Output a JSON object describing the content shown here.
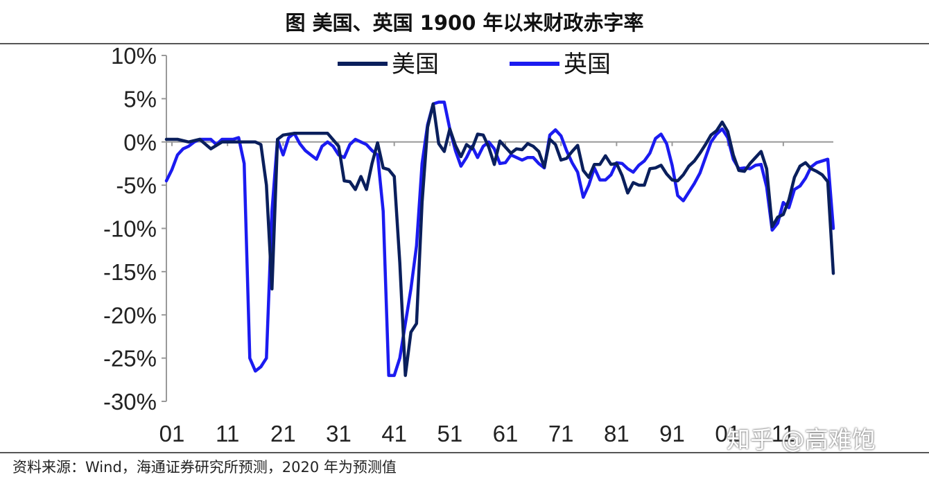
{
  "title": "图 美国、英国 1900 年以来财政赤字率",
  "source": "资料来源：Wind，海通证券研究所预测，2020 年为预测值",
  "watermark": "知乎 @高难饱",
  "chart_data": {
    "type": "line",
    "title": "图 美国、英国 1900 年以来财政赤字率",
    "xlabel": "",
    "ylabel": "",
    "xlim": [
      1900,
      2020
    ],
    "ylim": [
      -30,
      10
    ],
    "yticks": [
      10,
      5,
      0,
      -5,
      -10,
      -15,
      -20,
      -25,
      -30
    ],
    "ytick_labels": [
      "10%",
      "5%",
      "0%",
      "-5%",
      "-10%",
      "-15%",
      "-20%",
      "-25%",
      "-30%"
    ],
    "xticks": [
      1901,
      1911,
      1921,
      1931,
      1941,
      1951,
      1961,
      1971,
      1981,
      1991,
      2001,
      2011
    ],
    "xtick_labels": [
      "01",
      "11",
      "21",
      "31",
      "41",
      "51",
      "61",
      "71",
      "81",
      "91",
      "01",
      "11"
    ],
    "grid": false,
    "legend_position": "top-center",
    "series": [
      {
        "name": "美国",
        "color": "#0a1f5c",
        "points": [
          [
            1900,
            0.3
          ],
          [
            1902,
            0.3
          ],
          [
            1904,
            0
          ],
          [
            1906,
            0.3
          ],
          [
            1908,
            -0.8
          ],
          [
            1910,
            0
          ],
          [
            1912,
            0
          ],
          [
            1914,
            0
          ],
          [
            1916,
            0
          ],
          [
            1917,
            -0.3
          ],
          [
            1918,
            -5
          ],
          [
            1919,
            -17
          ],
          [
            1920,
            0.3
          ],
          [
            1921,
            0.8
          ],
          [
            1923,
            1
          ],
          [
            1925,
            1
          ],
          [
            1927,
            1
          ],
          [
            1929,
            1
          ],
          [
            1931,
            -0.5
          ],
          [
            1932,
            -4.5
          ],
          [
            1933,
            -4.6
          ],
          [
            1934,
            -5.5
          ],
          [
            1935,
            -4
          ],
          [
            1936,
            -5.5
          ],
          [
            1937,
            -2.5
          ],
          [
            1938,
            -0.1
          ],
          [
            1939,
            -3
          ],
          [
            1940,
            -3.2
          ],
          [
            1941,
            -4
          ],
          [
            1942,
            -14
          ],
          [
            1943,
            -27
          ],
          [
            1944,
            -22
          ],
          [
            1945,
            -21
          ],
          [
            1946,
            -7
          ],
          [
            1947,
            1.7
          ],
          [
            1948,
            4.4
          ],
          [
            1949,
            -0.2
          ],
          [
            1950,
            -1.1
          ],
          [
            1951,
            1.5
          ],
          [
            1952,
            -0.4
          ],
          [
            1953,
            -1.7
          ],
          [
            1954,
            -0.3
          ],
          [
            1955,
            -0.8
          ],
          [
            1956,
            0.9
          ],
          [
            1957,
            0.8
          ],
          [
            1958,
            -0.6
          ],
          [
            1959,
            -2.6
          ],
          [
            1960,
            0.1
          ],
          [
            1961,
            -0.6
          ],
          [
            1962,
            -1.3
          ],
          [
            1963,
            -0.8
          ],
          [
            1964,
            -0.9
          ],
          [
            1965,
            -0.2
          ],
          [
            1966,
            -0.5
          ],
          [
            1967,
            -1.1
          ],
          [
            1968,
            -2.9
          ],
          [
            1969,
            0.3
          ],
          [
            1970,
            -0.3
          ],
          [
            1971,
            -2.1
          ],
          [
            1972,
            -1.9
          ],
          [
            1973,
            -1.1
          ],
          [
            1974,
            -0.4
          ],
          [
            1975,
            -3.3
          ],
          [
            1976,
            -4.1
          ],
          [
            1977,
            -2.6
          ],
          [
            1978,
            -2.6
          ],
          [
            1979,
            -1.6
          ],
          [
            1980,
            -2.6
          ],
          [
            1981,
            -2.5
          ],
          [
            1982,
            -3.9
          ],
          [
            1983,
            -5.9
          ],
          [
            1984,
            -4.7
          ],
          [
            1985,
            -5.0
          ],
          [
            1986,
            -5.0
          ],
          [
            1987,
            -3.1
          ],
          [
            1988,
            -3.0
          ],
          [
            1989,
            -2.7
          ],
          [
            1990,
            -3.7
          ],
          [
            1991,
            -4.4
          ],
          [
            1992,
            -4.5
          ],
          [
            1993,
            -3.8
          ],
          [
            1994,
            -2.8
          ],
          [
            1995,
            -2.2
          ],
          [
            1996,
            -1.3
          ],
          [
            1997,
            -0.3
          ],
          [
            1998,
            0.8
          ],
          [
            1999,
            1.3
          ],
          [
            2000,
            2.3
          ],
          [
            2001,
            1.2
          ],
          [
            2002,
            -1.5
          ],
          [
            2003,
            -3.3
          ],
          [
            2004,
            -3.4
          ],
          [
            2005,
            -2.5
          ],
          [
            2006,
            -1.8
          ],
          [
            2007,
            -1.1
          ],
          [
            2008,
            -3.1
          ],
          [
            2009,
            -9.8
          ],
          [
            2010,
            -8.7
          ],
          [
            2011,
            -8.4
          ],
          [
            2012,
            -6.7
          ],
          [
            2013,
            -4.1
          ],
          [
            2014,
            -2.8
          ],
          [
            2015,
            -2.4
          ],
          [
            2016,
            -3.1
          ],
          [
            2017,
            -3.4
          ],
          [
            2018,
            -3.8
          ],
          [
            2019,
            -4.6
          ],
          [
            2020,
            -15.2
          ]
        ]
      },
      {
        "name": "英国",
        "color": "#1b1bf0",
        "points": [
          [
            1900,
            -4.5
          ],
          [
            1901,
            -3.2
          ],
          [
            1902,
            -1.5
          ],
          [
            1903,
            -0.8
          ],
          [
            1904,
            -0.5
          ],
          [
            1905,
            0
          ],
          [
            1906,
            0.3
          ],
          [
            1907,
            0.3
          ],
          [
            1908,
            0.3
          ],
          [
            1909,
            -0.3
          ],
          [
            1910,
            0.3
          ],
          [
            1911,
            0.3
          ],
          [
            1912,
            0.3
          ],
          [
            1913,
            0.5
          ],
          [
            1914,
            -2.5
          ],
          [
            1915,
            -25
          ],
          [
            1916,
            -26.5
          ],
          [
            1917,
            -26
          ],
          [
            1918,
            -25
          ],
          [
            1919,
            -8
          ],
          [
            1920,
            0.3
          ],
          [
            1921,
            -1.5
          ],
          [
            1922,
            0.5
          ],
          [
            1923,
            1
          ],
          [
            1924,
            -0.2
          ],
          [
            1925,
            -1
          ],
          [
            1926,
            -1.5
          ],
          [
            1927,
            -2
          ],
          [
            1928,
            -0.5
          ],
          [
            1929,
            0
          ],
          [
            1930,
            -0.5
          ],
          [
            1931,
            -1.5
          ],
          [
            1932,
            -1.8
          ],
          [
            1933,
            -0.3
          ],
          [
            1934,
            0.3
          ],
          [
            1935,
            0
          ],
          [
            1936,
            -0.3
          ],
          [
            1937,
            -1
          ],
          [
            1938,
            -1.5
          ],
          [
            1939,
            -8
          ],
          [
            1940,
            -27
          ],
          [
            1941,
            -27
          ],
          [
            1942,
            -25
          ],
          [
            1943,
            -21
          ],
          [
            1944,
            -17
          ],
          [
            1945,
            -12
          ],
          [
            1946,
            -2.5
          ],
          [
            1947,
            2
          ],
          [
            1948,
            4.4
          ],
          [
            1949,
            4.6
          ],
          [
            1950,
            4.6
          ],
          [
            1951,
            1.5
          ],
          [
            1952,
            -1
          ],
          [
            1953,
            -2.8
          ],
          [
            1954,
            -1.8
          ],
          [
            1955,
            -0.5
          ],
          [
            1956,
            -1.8
          ],
          [
            1957,
            -0.5
          ],
          [
            1958,
            0
          ],
          [
            1959,
            -0.8
          ],
          [
            1960,
            -2.5
          ],
          [
            1961,
            -2.4
          ],
          [
            1962,
            -1.5
          ],
          [
            1963,
            -1.8
          ],
          [
            1964,
            -2.1
          ],
          [
            1965,
            -1.8
          ],
          [
            1966,
            -1.8
          ],
          [
            1967,
            -2.5
          ],
          [
            1968,
            -3.0
          ],
          [
            1969,
            0.8
          ],
          [
            1970,
            1.4
          ],
          [
            1971,
            0.7
          ],
          [
            1972,
            -1.0
          ],
          [
            1973,
            -2.4
          ],
          [
            1974,
            -3.5
          ],
          [
            1975,
            -6.4
          ],
          [
            1976,
            -5.0
          ],
          [
            1977,
            -3.0
          ],
          [
            1978,
            -4.4
          ],
          [
            1979,
            -4.4
          ],
          [
            1980,
            -3.8
          ],
          [
            1981,
            -2.4
          ],
          [
            1982,
            -2.5
          ],
          [
            1983,
            -3.1
          ],
          [
            1984,
            -3.5
          ],
          [
            1985,
            -2.7
          ],
          [
            1986,
            -2.2
          ],
          [
            1987,
            -1.3
          ],
          [
            1988,
            0.4
          ],
          [
            1989,
            0.9
          ],
          [
            1990,
            -0.2
          ],
          [
            1991,
            -2.7
          ],
          [
            1992,
            -6.2
          ],
          [
            1993,
            -6.8
          ],
          [
            1994,
            -5.8
          ],
          [
            1995,
            -4.8
          ],
          [
            1996,
            -3.6
          ],
          [
            1997,
            -1.8
          ],
          [
            1998,
            0
          ],
          [
            1999,
            0.9
          ],
          [
            2000,
            1.5
          ],
          [
            2001,
            0.5
          ],
          [
            2002,
            -2.0
          ],
          [
            2003,
            -3.1
          ],
          [
            2004,
            -3.0
          ],
          [
            2005,
            -3.1
          ],
          [
            2006,
            -2.7
          ],
          [
            2007,
            -2.6
          ],
          [
            2008,
            -5.2
          ],
          [
            2009,
            -10.2
          ],
          [
            2010,
            -9.4
          ],
          [
            2011,
            -7.0
          ],
          [
            2012,
            -7.6
          ],
          [
            2013,
            -5.5
          ],
          [
            2014,
            -5.1
          ],
          [
            2015,
            -4.2
          ],
          [
            2016,
            -2.9
          ],
          [
            2017,
            -2.4
          ],
          [
            2018,
            -2.2
          ],
          [
            2019,
            -2.0
          ],
          [
            2020,
            -10
          ]
        ]
      }
    ]
  }
}
